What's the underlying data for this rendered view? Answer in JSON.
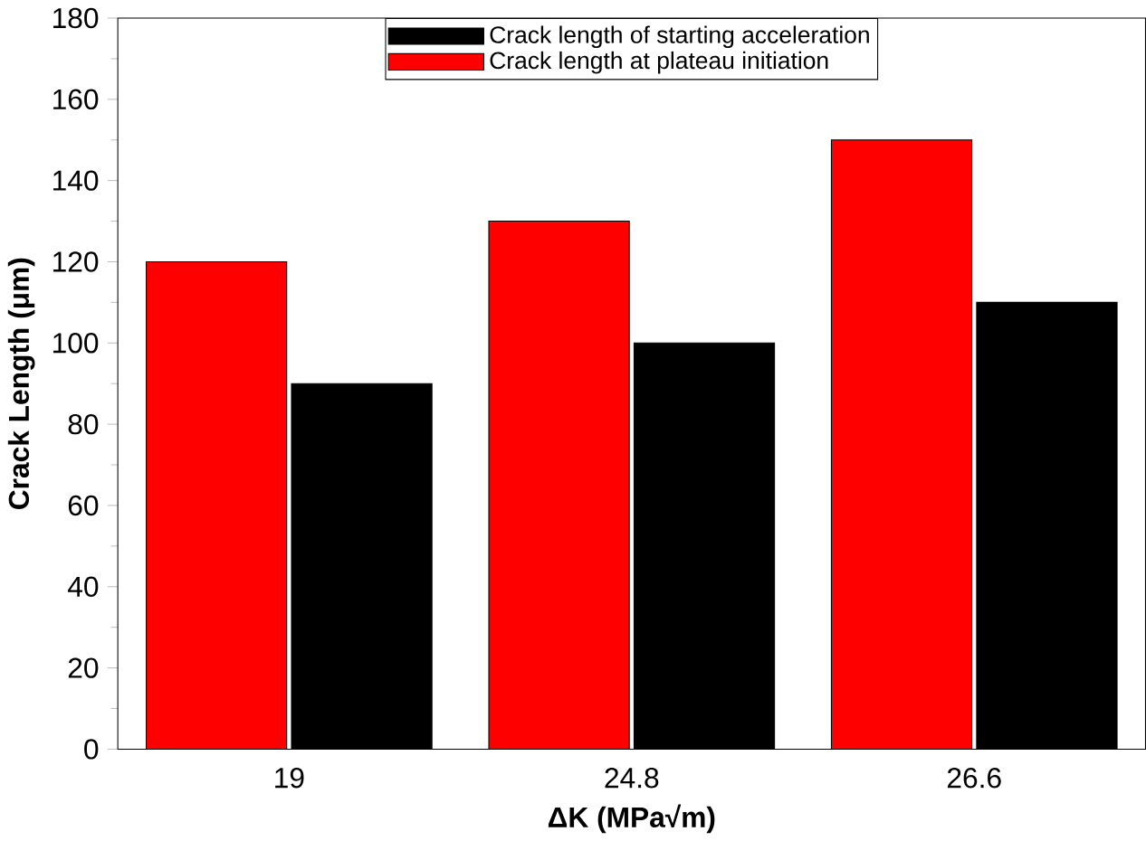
{
  "chart_data": {
    "type": "bar",
    "xlabel": "**ΔK (MPa√m)**",
    "ylabel": "**Crack Length (μm)**",
    "categories": [
      "19",
      "24.8",
      "26.6"
    ],
    "series": [
      {
        "name": "Crack length at plateau initiation",
        "color": "#ff0000",
        "values": [
          120,
          130,
          150
        ]
      },
      {
        "name": "Crack length of starting acceleration",
        "color": "#000000",
        "values": [
          90,
          100,
          110
        ]
      }
    ],
    "ylim": [
      0,
      180
    ],
    "yticks": [
      0,
      20,
      40,
      60,
      80,
      100,
      120,
      140,
      160,
      180
    ],
    "grid": false,
    "legend": "top"
  }
}
